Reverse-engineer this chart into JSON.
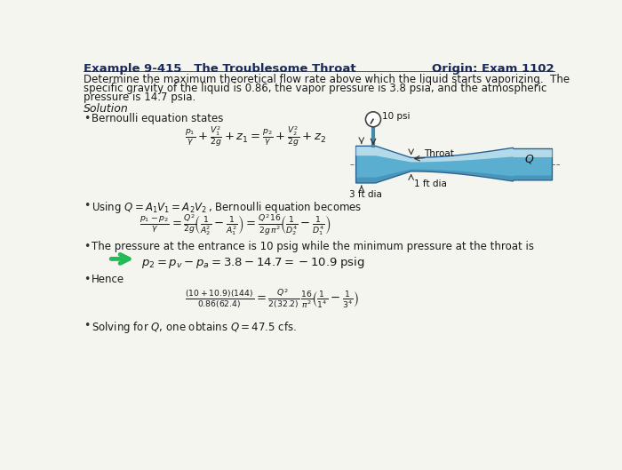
{
  "title_left": "Example 9-415   The Troublesome Throat",
  "title_right": "Origin: Exam 1102",
  "bg_color": "#f5f5f0",
  "text_color": "#1a1a1a",
  "body_line1": "Determine the maximum theoretical flow rate above which the liquid starts vaporizing.  The",
  "body_line2": "specific gravity of the liquid is 0.86, the vapor pressure is 3.8 psia, and the atmospheric",
  "body_line3": "pressure is 14.7 psia.",
  "solution_label": "Solution",
  "pipe_color_main": "#5aaed0",
  "pipe_color_light": "#9dd4ea",
  "pipe_color_dark": "#3a80a8",
  "pipe_color_edge": "#2a6090",
  "arrow_color": "#22bb55",
  "gauge_stem_color": "#4488aa",
  "title_color": "#1a2a5a"
}
